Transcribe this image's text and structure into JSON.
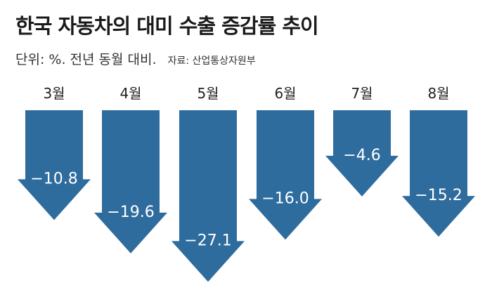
{
  "title": "한국 자동차의 대미 수출 증감률 추이",
  "unit_note": "단위: %. 전년 동월 대비.",
  "source_note": "자료: 산업통상자원부",
  "colors": {
    "arrow": "#2f6c9e",
    "label": "#ffffff",
    "text": "#222222"
  },
  "chart_data": {
    "type": "bar",
    "categories": [
      "3월",
      "4월",
      "5월",
      "6월",
      "7월",
      "8월"
    ],
    "values": [
      -10.8,
      -19.6,
      -27.1,
      -16.0,
      -4.6,
      -15.2
    ],
    "value_labels": [
      "−10.8",
      "−19.6",
      "−27.1",
      "−16.0",
      "−4.6",
      "−15.2"
    ],
    "title": "한국 자동차의 대미 수출 증감률 추이",
    "ylabel": "",
    "ylim": [
      -27.1,
      0
    ]
  }
}
